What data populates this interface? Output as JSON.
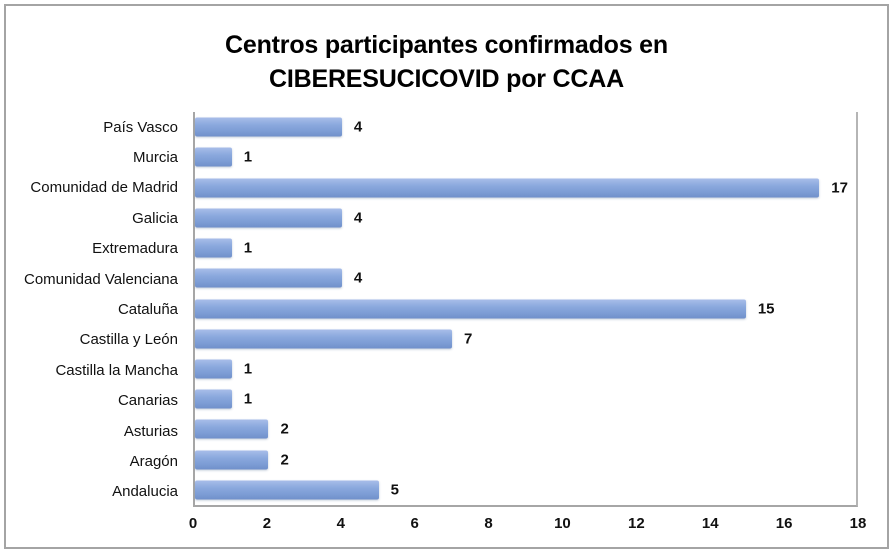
{
  "frame": {
    "border_color": "#a4a4a4",
    "background": "#ffffff"
  },
  "title": {
    "full": "Centros participantes confirmados en CIBERESUCICOVID por CCAA",
    "lines": [
      "Centros participantes confirmados en",
      "CIBERESUCICOVID por CCAA"
    ]
  },
  "chart_data": {
    "type": "bar",
    "orientation": "horizontal",
    "title": "Centros participantes confirmados en CIBERESUCICOVID por CCAA",
    "categories": [
      "País Vasco",
      "Murcia",
      "Comunidad de Madrid",
      "Galicia",
      "Extremadura",
      "Comunidad Valenciana",
      "Cataluña",
      "Castilla y León",
      "Castilla la Mancha",
      "Canarias",
      "Asturias",
      "Aragón",
      "Andalucia"
    ],
    "values": [
      4,
      1,
      17,
      4,
      1,
      4,
      15,
      7,
      1,
      1,
      2,
      2,
      5
    ],
    "data_labels": [
      4,
      1,
      17,
      4,
      1,
      4,
      15,
      7,
      1,
      1,
      2,
      2,
      5
    ],
    "xlabel": "",
    "ylabel": "",
    "xlim": [
      0,
      18
    ],
    "x_ticks": [
      0,
      2,
      4,
      6,
      8,
      10,
      12,
      14,
      16,
      18
    ],
    "grid": false,
    "legend": false,
    "bar_color": "#7fa0d7",
    "bar_gradient_top": "#a8bde9",
    "bar_gradient_bottom": "#7090ca",
    "axis_color": "#a6a6a6",
    "text_color": "#000000"
  }
}
